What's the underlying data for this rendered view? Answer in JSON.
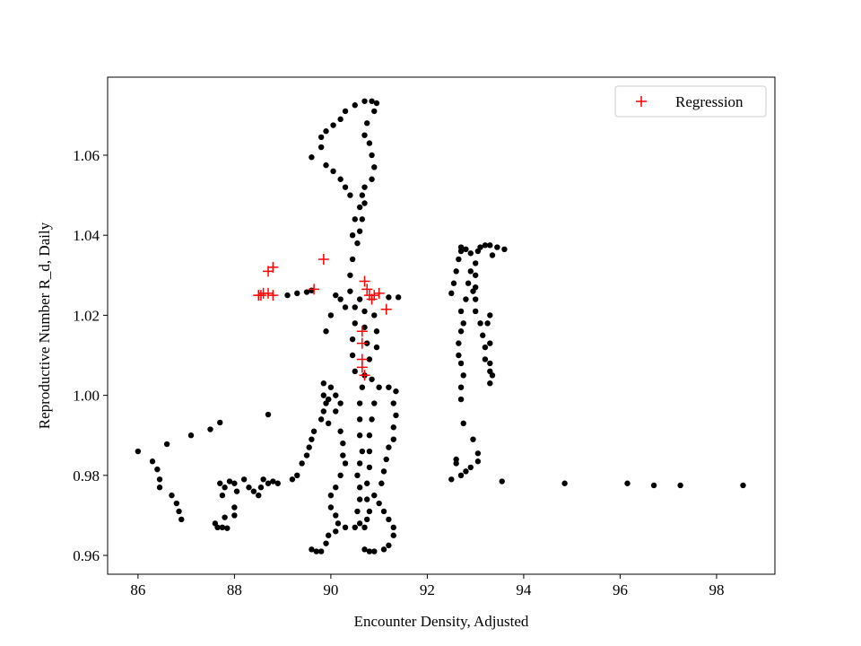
{
  "chart_data": {
    "type": "scatter",
    "xlabel": "Encounter Density, Adjusted",
    "ylabel": "Reproductive Number R_d, Daily",
    "xlim": [
      85.37,
      99.21
    ],
    "ylim": [
      0.9553,
      1.0795
    ],
    "xticks": [
      86,
      88,
      90,
      92,
      94,
      96,
      98
    ],
    "yticks": [
      0.96,
      0.98,
      {
        "value": 1,
        "label": "1.00"
      },
      1.02,
      1.04,
      1.06
    ],
    "legend": "upper right",
    "series": [
      {
        "color": "#000000",
        "marker": "o",
        "x": [
          86.0,
          86.3,
          86.4,
          86.45,
          86.45,
          86.6,
          86.7,
          86.8,
          86.85,
          86.9,
          87.1,
          87.5,
          87.7,
          87.6,
          87.65,
          87.75,
          87.85,
          87.8,
          87.7,
          87.8,
          87.9,
          88.0,
          88.05,
          88.0,
          88.0,
          87.75,
          88.2,
          88.3,
          88.4,
          88.5,
          88.55,
          88.6,
          88.7,
          88.8,
          88.9,
          88.7,
          89.1,
          89.3,
          89.5,
          89.6,
          89.2,
          89.3,
          89.4,
          89.5,
          89.55,
          89.6,
          89.65,
          89.8,
          89.85,
          89.9,
          89.85,
          89.85,
          90.0,
          90.1,
          89.95,
          90.2,
          90.1,
          89.95,
          90.2,
          90.25,
          90.25,
          90.3,
          90.2,
          90.1,
          90.0,
          90.0,
          90.1,
          90.15,
          90.1,
          89.95,
          89.9,
          89.6,
          89.7,
          89.8,
          90.3,
          90.5,
          90.7,
          90.8,
          90.9,
          91.1,
          91.2,
          91.3,
          91.3,
          91.2,
          91.1,
          91.0,
          90.9,
          91.05,
          91.1,
          91.15,
          91.2,
          91.3,
          91.3,
          91.35,
          91.3,
          91.35,
          91.2,
          91.0,
          90.85,
          90.7,
          90.65,
          90.6,
          90.6,
          90.6,
          90.65,
          90.6,
          90.55,
          90.6,
          90.6,
          90.55,
          90.6,
          90.7,
          90.75,
          90.8,
          90.75,
          90.75,
          90.8,
          90.8,
          90.8,
          90.85,
          90.9,
          90.5,
          90.45,
          90.45,
          90.5,
          90.5,
          90.6,
          90.7,
          90.7,
          90.75,
          90.8,
          90.95,
          90.95,
          90.9,
          90.3,
          90.2,
          90.0,
          89.9,
          90.1,
          90.4,
          90.4,
          90.45,
          90.55,
          90.6,
          90.65,
          90.6,
          90.7,
          90.65,
          90.4,
          90.3,
          90.2,
          90.05,
          89.9,
          89.6,
          89.8,
          89.8,
          89.9,
          90.05,
          90.2,
          90.3,
          90.5,
          90.7,
          90.85,
          90.95,
          90.9,
          90.75,
          90.7,
          90.8,
          90.85,
          90.9,
          90.85,
          90.7,
          90.5,
          90.45,
          91.4,
          91.2,
          92.5,
          92.55,
          92.6,
          92.65,
          92.7,
          92.7,
          92.8,
          92.9,
          92.9,
          92.85,
          92.95,
          92.8,
          92.7,
          92.75,
          92.7,
          92.65,
          92.65,
          92.7,
          92.75,
          92.7,
          92.7,
          92.75,
          92.6,
          92.6,
          92.5,
          92.7,
          92.8,
          92.9,
          93.05,
          93.05,
          92.95,
          93.0,
          93.1,
          93.15,
          93.2,
          93.2,
          93.3,
          93.3,
          93.35,
          93.3,
          93.3,
          93.25,
          93.3,
          93.0,
          93.0,
          93.0,
          93.0,
          93.05,
          93.1,
          93.2,
          93.3,
          93.45,
          93.6,
          93.35,
          93.55,
          94.85,
          96.15,
          96.7,
          97.25,
          98.55
        ],
        "values": [
          0.986,
          0.9835,
          0.9815,
          0.979,
          0.977,
          0.9878,
          0.975,
          0.973,
          0.971,
          0.969,
          0.99,
          0.9915,
          0.9932,
          0.968,
          0.967,
          0.967,
          0.9668,
          0.9695,
          0.978,
          0.977,
          0.9785,
          0.978,
          0.976,
          0.972,
          0.97,
          0.975,
          0.979,
          0.977,
          0.976,
          0.975,
          0.977,
          0.979,
          0.978,
          0.9785,
          0.978,
          0.9952,
          1.025,
          1.0255,
          1.0258,
          1.0262,
          0.979,
          0.98,
          0.983,
          0.985,
          0.987,
          0.989,
          0.991,
          0.994,
          0.996,
          0.998,
          1.0,
          1.003,
          1.002,
          1.0,
          0.999,
          0.998,
          0.996,
          0.993,
          0.991,
          0.988,
          0.985,
          0.983,
          0.98,
          0.977,
          0.975,
          0.972,
          0.97,
          0.968,
          0.966,
          0.965,
          0.963,
          0.9615,
          0.961,
          0.961,
          0.967,
          0.967,
          0.9615,
          0.961,
          0.961,
          0.9615,
          0.9625,
          0.965,
          0.967,
          0.969,
          0.971,
          0.973,
          0.975,
          0.978,
          0.981,
          0.984,
          0.987,
          0.989,
          0.992,
          0.995,
          0.998,
          1.001,
          1.002,
          1.002,
          1.004,
          1.005,
          1.002,
          0.998,
          0.994,
          0.99,
          0.986,
          0.983,
          0.98,
          0.977,
          0.974,
          0.971,
          0.968,
          0.967,
          0.969,
          0.971,
          0.974,
          0.978,
          0.982,
          0.986,
          0.99,
          0.994,
          0.998,
          1.006,
          1.01,
          1.014,
          1.018,
          1.022,
          1.024,
          1.021,
          1.017,
          1.013,
          1.009,
          1.012,
          1.016,
          1.02,
          1.022,
          1.024,
          1.02,
          1.016,
          1.025,
          1.026,
          1.03,
          1.034,
          1.038,
          1.041,
          1.044,
          1.047,
          1.048,
          1.05,
          1.05,
          1.052,
          1.054,
          1.056,
          1.0575,
          1.0595,
          1.062,
          1.0645,
          1.066,
          1.0675,
          1.069,
          1.071,
          1.0725,
          1.0735,
          1.0735,
          1.073,
          1.071,
          1.068,
          1.065,
          1.063,
          1.06,
          1.057,
          1.054,
          1.052,
          1.044,
          1.04,
          1.0245,
          1.0245,
          1.0255,
          1.028,
          1.031,
          1.034,
          1.036,
          1.037,
          1.0365,
          1.0355,
          1.031,
          1.028,
          1.026,
          1.024,
          1.021,
          1.018,
          1.016,
          1.013,
          1.01,
          1.008,
          1.005,
          1.002,
          0.999,
          0.993,
          0.984,
          0.983,
          0.979,
          0.98,
          0.981,
          0.982,
          0.9835,
          0.9855,
          0.989,
          1.021,
          1.018,
          1.015,
          1.012,
          1.009,
          1.006,
          1.003,
          1.005,
          1.008,
          1.013,
          1.018,
          1.02,
          1.024,
          1.027,
          1.03,
          1.033,
          1.036,
          1.037,
          1.0375,
          1.0375,
          1.037,
          1.0365,
          1.035,
          0.9785,
          0.978,
          0.978,
          0.9775,
          0.9775,
          0.9775
        ]
      },
      {
        "name": "Regression",
        "color": "#ff0000",
        "marker": "+",
        "x": [
          88.5,
          88.55,
          88.6,
          88.7,
          88.8,
          88.7,
          88.8,
          89.65,
          89.85,
          90.7,
          90.75,
          90.85,
          90.8,
          90.9,
          91.0,
          91.15,
          90.65,
          90.65,
          90.65,
          90.65,
          90.7
        ],
        "values": [
          1.025,
          1.025,
          1.0255,
          1.0255,
          1.025,
          1.031,
          1.032,
          1.0265,
          1.034,
          1.0285,
          1.0265,
          1.024,
          1.025,
          1.025,
          1.0255,
          1.0215,
          1.016,
          1.013,
          1.009,
          1.007,
          1.005
        ]
      }
    ]
  }
}
